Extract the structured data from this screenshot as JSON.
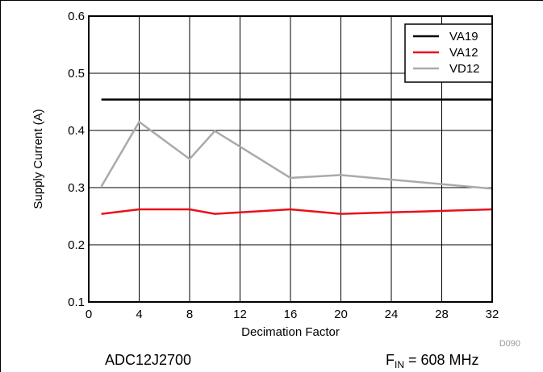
{
  "chart_data": {
    "type": "line",
    "title": "",
    "xlabel": "Decimation Factor",
    "ylabel": "Supply Current (A)",
    "xlim": [
      0,
      32
    ],
    "ylim": [
      0.1,
      0.6
    ],
    "xticks": [
      0,
      4,
      8,
      12,
      16,
      20,
      24,
      28,
      32
    ],
    "yticks": [
      0.1,
      0.2,
      0.3,
      0.4,
      0.5,
      0.6
    ],
    "xtick_labels": [
      "0",
      "4",
      "8",
      "12",
      "16",
      "20",
      "24",
      "28",
      "32"
    ],
    "ytick_labels": [
      "0.1",
      "0.2",
      "0.3",
      "0.4",
      "0.5",
      "0.6"
    ],
    "grid": true,
    "legend_position": "top-right",
    "series": [
      {
        "name": "VA19",
        "color": "#000000",
        "x": [
          1,
          4,
          8,
          10,
          16,
          20,
          32
        ],
        "values": [
          0.454,
          0.454,
          0.454,
          0.454,
          0.454,
          0.454,
          0.454
        ]
      },
      {
        "name": "VA12",
        "color": "#e8101c",
        "x": [
          1,
          4,
          8,
          10,
          16,
          20,
          32
        ],
        "values": [
          0.254,
          0.262,
          0.262,
          0.254,
          0.262,
          0.254,
          0.262
        ]
      },
      {
        "name": "VD12",
        "color": "#aaaaaa",
        "x": [
          1,
          4,
          8,
          10,
          16,
          20,
          32
        ],
        "values": [
          0.302,
          0.415,
          0.35,
          0.399,
          0.317,
          0.322,
          0.298
        ]
      }
    ],
    "figure_id": "D090"
  },
  "footer": {
    "device": "ADC12J2700",
    "fin_label": "F",
    "fin_sub": "IN",
    "fin_value": " = 608 MHz"
  }
}
